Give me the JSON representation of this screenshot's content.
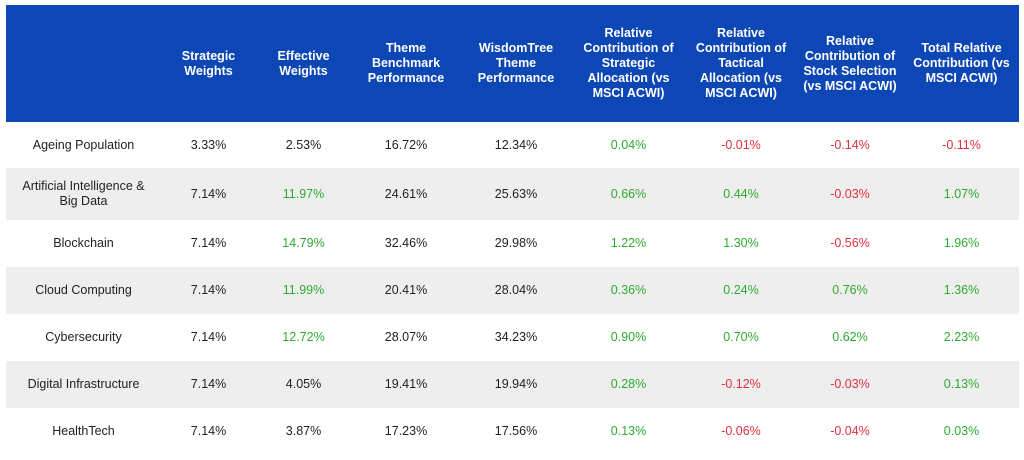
{
  "colors": {
    "header_bg": "#0d47b5",
    "positive": "#2eac2e",
    "negative": "#e0303e",
    "stripe": "#eeeeee"
  },
  "headers": [
    "",
    "Strategic Weights",
    "Effective Weights",
    "Theme Benchmark Performance",
    "WisdomTree Theme Performance",
    "Relative Contribution of Strategic Allocation (vs MSCI ACWI)",
    "Relative Contribution of Tactical Allocation (vs MSCI ACWI)",
    "Relative Contribution of Stock Selection (vs MSCI ACWI)",
    "Total Relative Contribution (vs MSCI ACWI)"
  ],
  "rows": [
    {
      "cells": [
        {
          "v": "Ageing Population",
          "c": "neu"
        },
        {
          "v": "3.33%",
          "c": "neu"
        },
        {
          "v": "2.53%",
          "c": "neu"
        },
        {
          "v": "16.72%",
          "c": "neu"
        },
        {
          "v": "12.34%",
          "c": "neu"
        },
        {
          "v": "0.04%",
          "c": "pos"
        },
        {
          "v": "-0.01%",
          "c": "neg"
        },
        {
          "v": "-0.14%",
          "c": "neg"
        },
        {
          "v": "-0.11%",
          "c": "neg"
        }
      ]
    },
    {
      "cells": [
        {
          "v": "Artificial Intelligence & Big Data",
          "c": "neu"
        },
        {
          "v": "7.14%",
          "c": "neu"
        },
        {
          "v": "11.97%",
          "c": "pos"
        },
        {
          "v": "24.61%",
          "c": "neu"
        },
        {
          "v": "25.63%",
          "c": "neu"
        },
        {
          "v": "0.66%",
          "c": "pos"
        },
        {
          "v": "0.44%",
          "c": "pos"
        },
        {
          "v": "-0.03%",
          "c": "neg"
        },
        {
          "v": "1.07%",
          "c": "pos"
        }
      ]
    },
    {
      "cells": [
        {
          "v": "Blockchain",
          "c": "neu"
        },
        {
          "v": "7.14%",
          "c": "neu"
        },
        {
          "v": "14.79%",
          "c": "pos"
        },
        {
          "v": "32.46%",
          "c": "neu"
        },
        {
          "v": "29.98%",
          "c": "neu"
        },
        {
          "v": "1.22%",
          "c": "pos"
        },
        {
          "v": "1.30%",
          "c": "pos"
        },
        {
          "v": "-0.56%",
          "c": "neg"
        },
        {
          "v": "1.96%",
          "c": "pos"
        }
      ]
    },
    {
      "cells": [
        {
          "v": "Cloud Computing",
          "c": "neu"
        },
        {
          "v": "7.14%",
          "c": "neu"
        },
        {
          "v": "11.99%",
          "c": "pos"
        },
        {
          "v": "20.41%",
          "c": "neu"
        },
        {
          "v": "28.04%",
          "c": "neu"
        },
        {
          "v": "0.36%",
          "c": "pos"
        },
        {
          "v": "0.24%",
          "c": "pos"
        },
        {
          "v": "0.76%",
          "c": "pos"
        },
        {
          "v": "1.36%",
          "c": "pos"
        }
      ]
    },
    {
      "cells": [
        {
          "v": "Cybersecurity",
          "c": "neu"
        },
        {
          "v": "7.14%",
          "c": "neu"
        },
        {
          "v": "12.72%",
          "c": "pos"
        },
        {
          "v": "28.07%",
          "c": "neu"
        },
        {
          "v": "34.23%",
          "c": "neu"
        },
        {
          "v": "0.90%",
          "c": "pos"
        },
        {
          "v": "0.70%",
          "c": "pos"
        },
        {
          "v": "0.62%",
          "c": "pos"
        },
        {
          "v": "2.23%",
          "c": "pos"
        }
      ]
    },
    {
      "cells": [
        {
          "v": "Digital Infrastructure",
          "c": "neu"
        },
        {
          "v": "7.14%",
          "c": "neu"
        },
        {
          "v": "4.05%",
          "c": "neu"
        },
        {
          "v": "19.41%",
          "c": "neu"
        },
        {
          "v": "19.94%",
          "c": "neu"
        },
        {
          "v": "0.28%",
          "c": "pos"
        },
        {
          "v": "-0.12%",
          "c": "neg"
        },
        {
          "v": "-0.03%",
          "c": "neg"
        },
        {
          "v": "0.13%",
          "c": "pos"
        }
      ]
    },
    {
      "cells": [
        {
          "v": "HealthTech",
          "c": "neu"
        },
        {
          "v": "7.14%",
          "c": "neu"
        },
        {
          "v": "3.87%",
          "c": "neu"
        },
        {
          "v": "17.23%",
          "c": "neu"
        },
        {
          "v": "17.56%",
          "c": "neu"
        },
        {
          "v": "0.13%",
          "c": "pos"
        },
        {
          "v": "-0.06%",
          "c": "neg"
        },
        {
          "v": "-0.04%",
          "c": "neg"
        },
        {
          "v": "0.03%",
          "c": "pos"
        }
      ]
    }
  ]
}
